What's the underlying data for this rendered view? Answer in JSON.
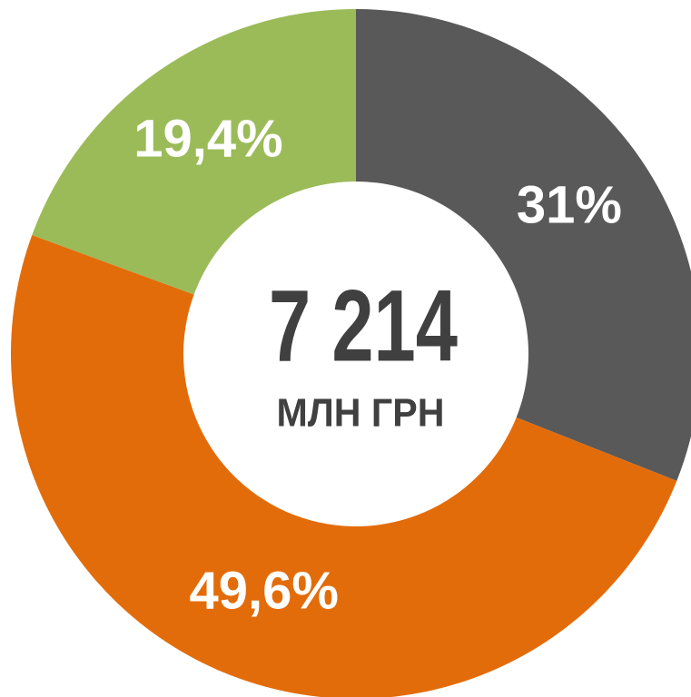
{
  "chart_data": {
    "type": "donut",
    "categories": [
      null,
      null,
      null
    ],
    "values": [
      31,
      49.6,
      19.4
    ],
    "value_labels": [
      "31%",
      "49,6%",
      "19,4%"
    ],
    "colors": [
      "#595959",
      "#e36c0a",
      "#9bbb59"
    ],
    "center_value": "7 214",
    "center_label": "МЛН ГРН"
  }
}
